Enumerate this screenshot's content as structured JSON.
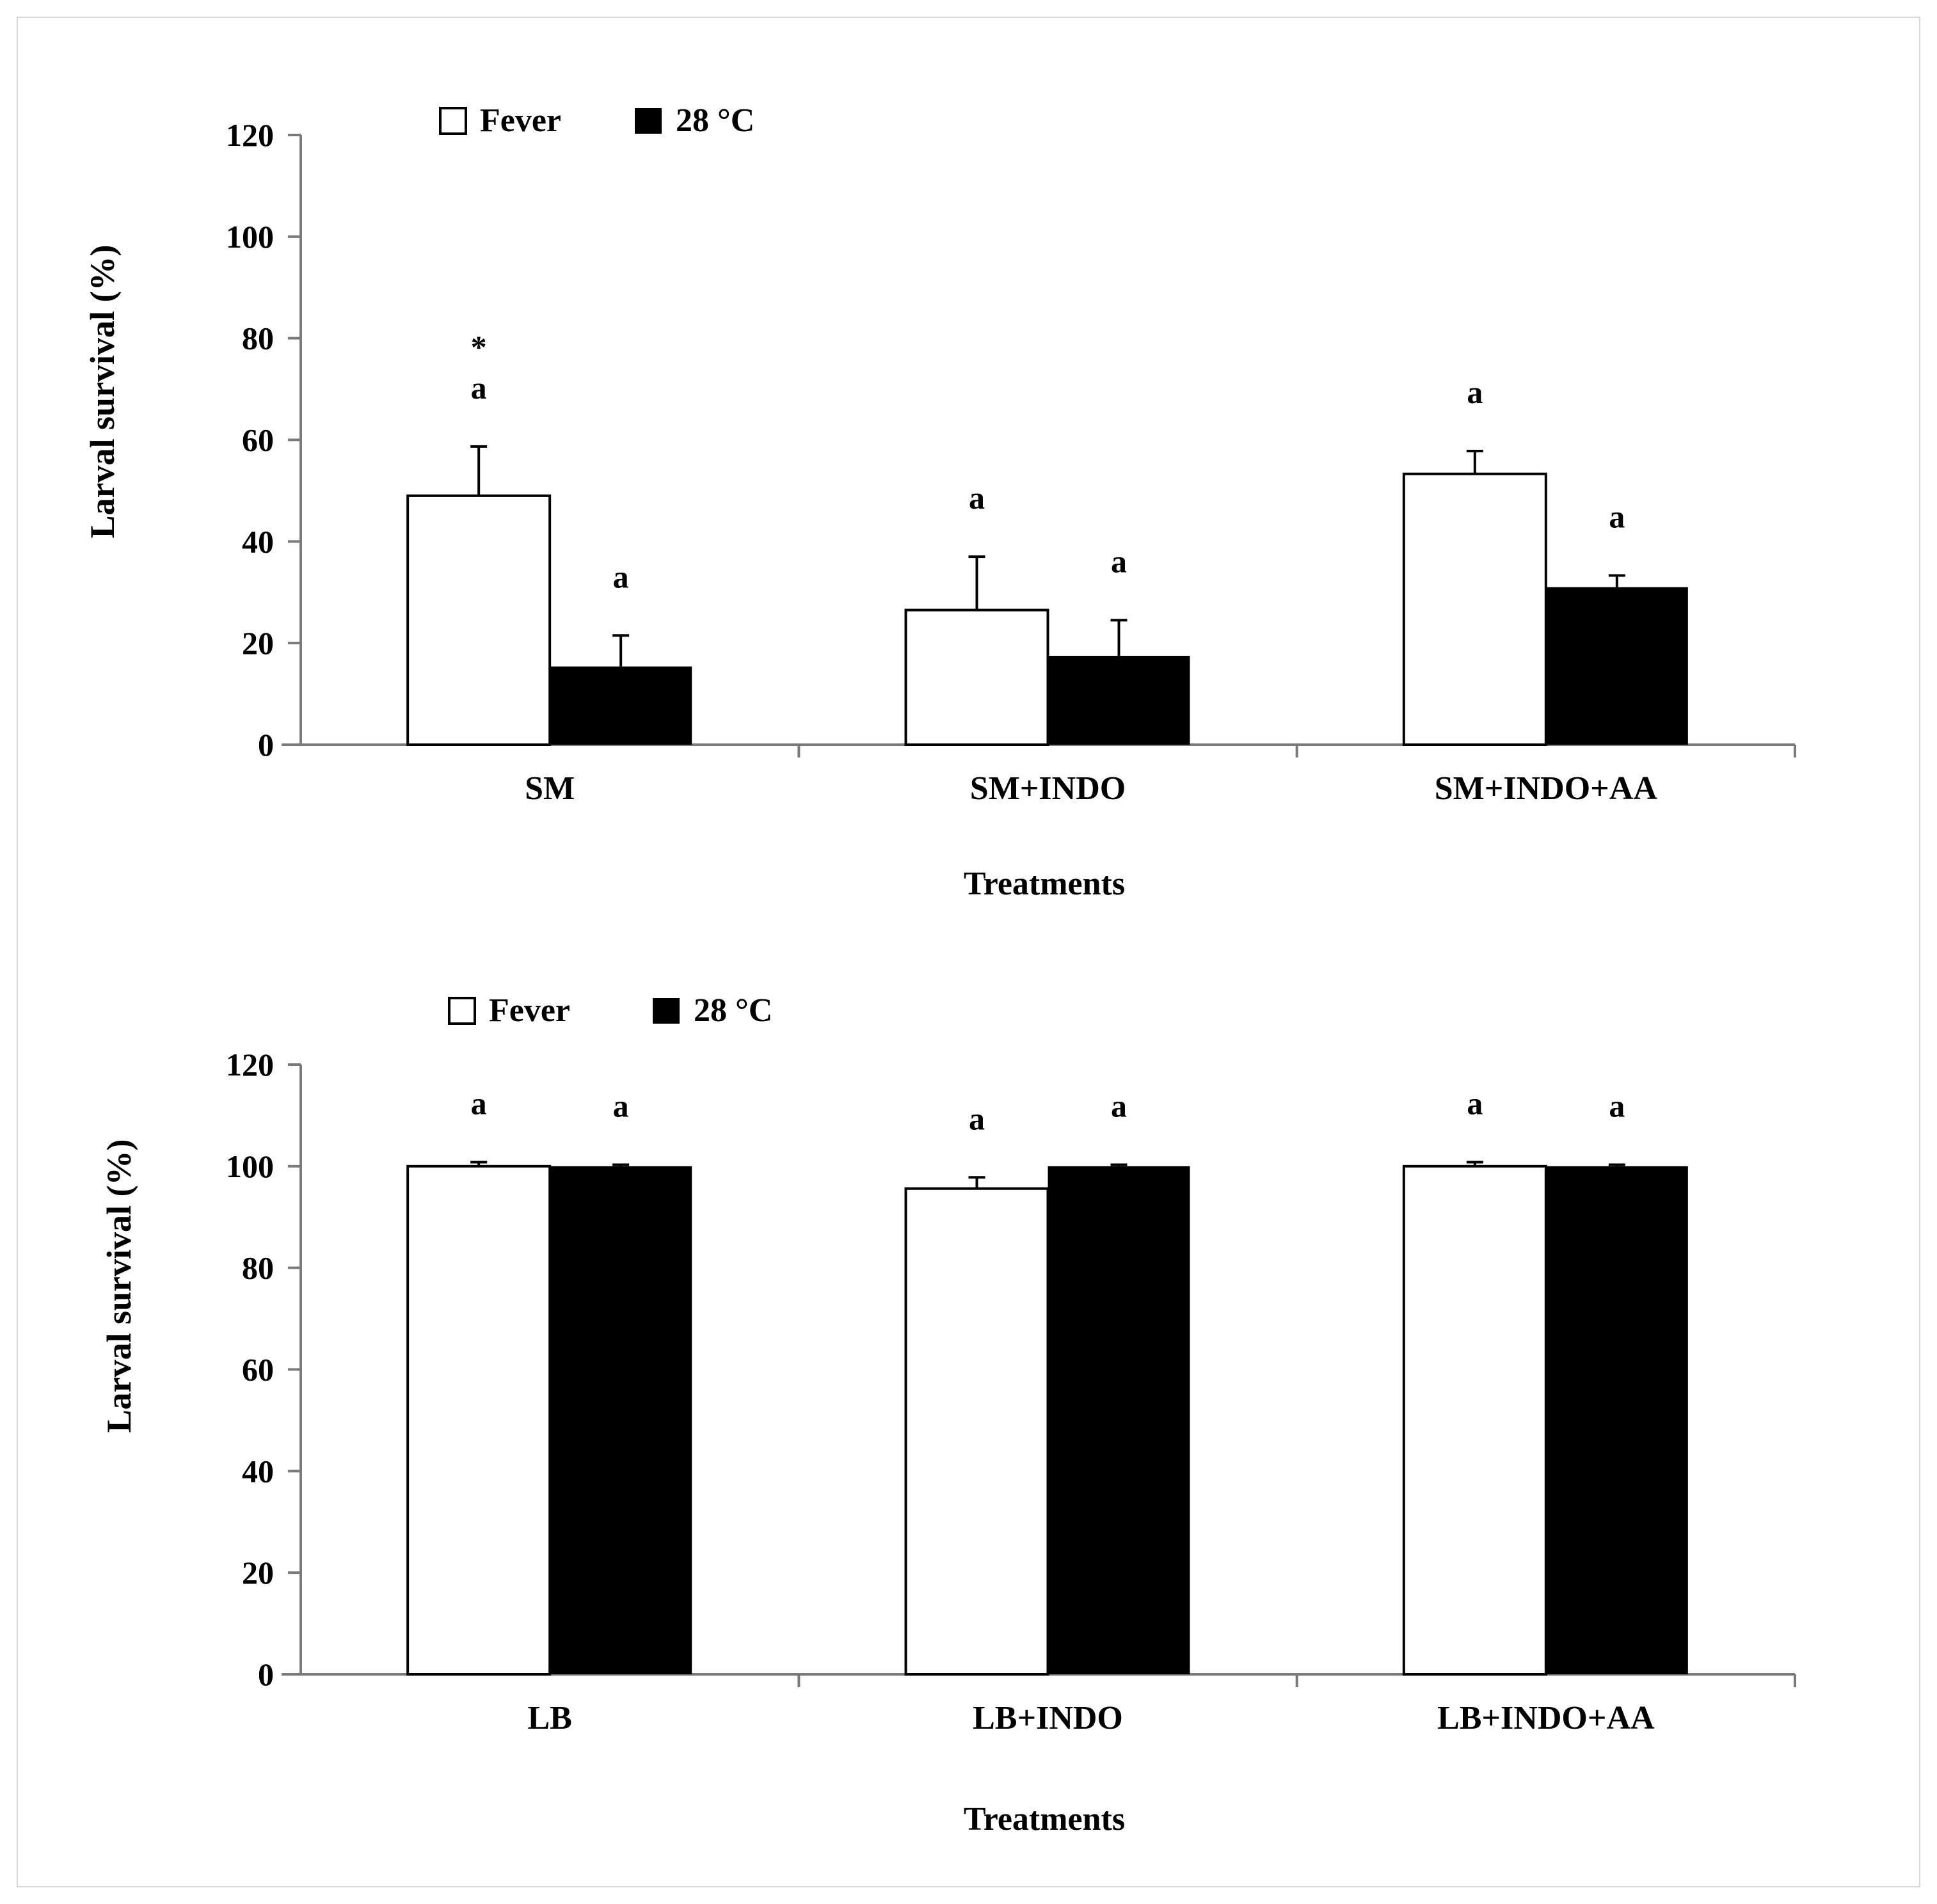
{
  "chart_data": [
    {
      "type": "bar",
      "title": "",
      "xlabel": "Treatments",
      "ylabel": "Larval survival (%)",
      "ylim": [
        0,
        120
      ],
      "yticks": [
        "0",
        "20",
        "40",
        "60",
        "80",
        "100",
        "120"
      ],
      "categories": [
        "SM",
        "SM+INDO",
        "SM+INDO+AA"
      ],
      "legend": {
        "placement": "top-left",
        "entries": [
          "Fever",
          "28 °C"
        ]
      },
      "series": [
        {
          "name": "Fever",
          "color": "#ffffff",
          "values": [
            49,
            26.5,
            53.3
          ],
          "errors": [
            9.7,
            10.5,
            4.5
          ],
          "letters": [
            "a",
            "a",
            "a"
          ],
          "extra_marks": [
            "*",
            "",
            ""
          ]
        },
        {
          "name": "28 °C",
          "color": "#000000",
          "values": [
            15.4,
            17.5,
            31
          ],
          "errors": [
            6.1,
            7,
            2.3
          ],
          "letters": [
            "a",
            "a",
            "a"
          ],
          "extra_marks": [
            "",
            "",
            ""
          ]
        }
      ]
    },
    {
      "type": "bar",
      "title": "",
      "xlabel": "Treatments",
      "ylabel": "Larval survival (%)",
      "ylim": [
        0,
        120
      ],
      "yticks": [
        "0",
        "20",
        "40",
        "60",
        "80",
        "100",
        "120"
      ],
      "categories": [
        "LB",
        "LB+INDO",
        "LB+INDO+AA"
      ],
      "legend": {
        "placement": "top-left",
        "entries": [
          "Fever",
          "28 °C"
        ]
      },
      "series": [
        {
          "name": "Fever",
          "color": "#ffffff",
          "values": [
            100,
            95.6,
            100
          ],
          "errors": [
            0.8,
            2.2,
            0.8
          ],
          "letters": [
            "a",
            "a",
            "a"
          ],
          "extra_marks": [
            "",
            "",
            ""
          ]
        },
        {
          "name": "28 °C",
          "color": "#000000",
          "values": [
            100,
            100,
            100
          ],
          "errors": [
            0.3,
            0.3,
            0.3
          ],
          "letters": [
            "a",
            "a",
            "a"
          ],
          "extra_marks": [
            "",
            "",
            ""
          ]
        }
      ]
    }
  ]
}
